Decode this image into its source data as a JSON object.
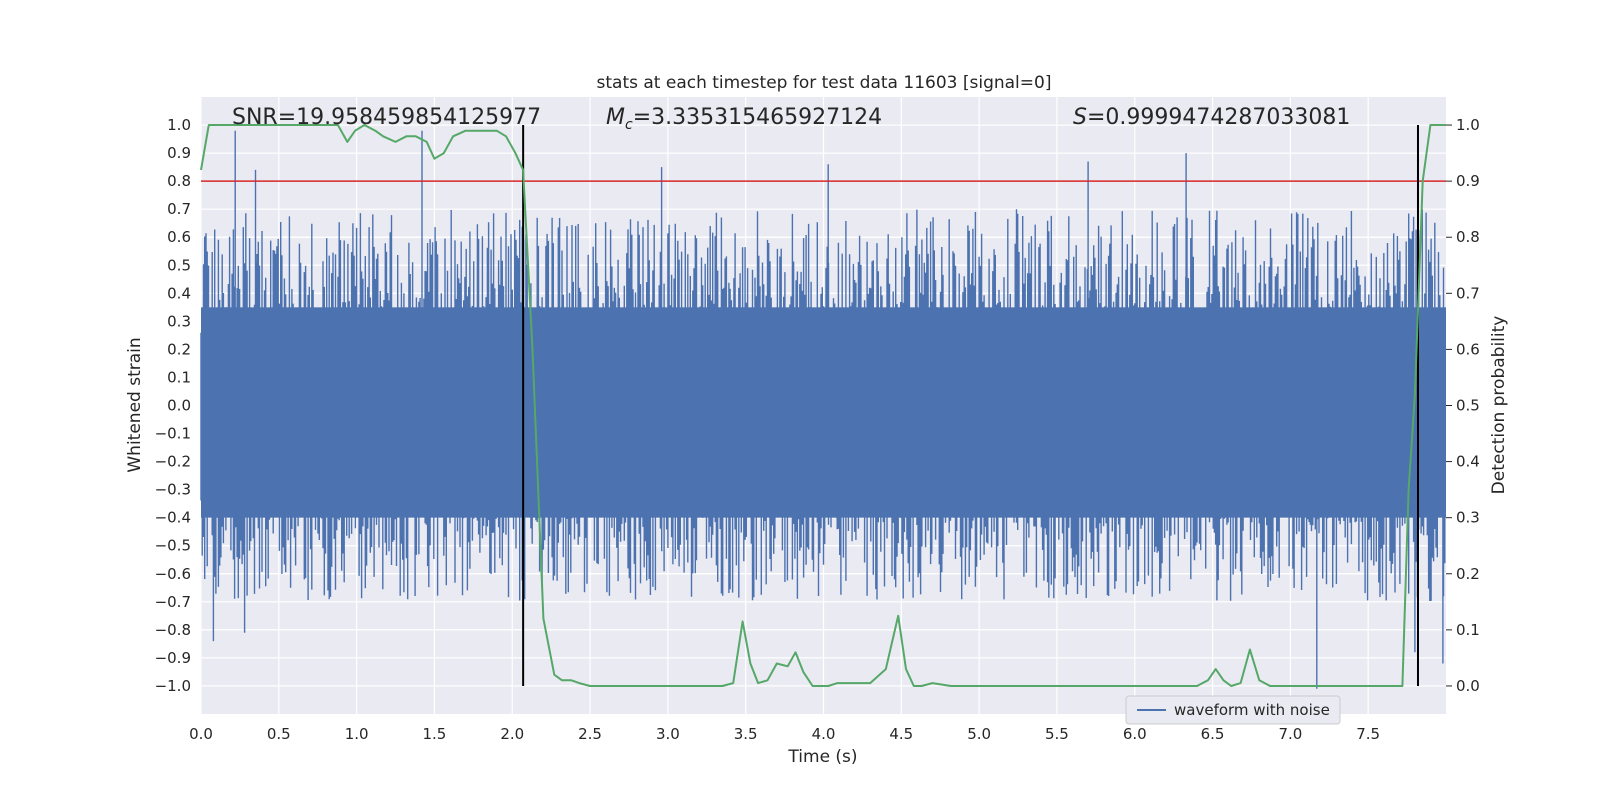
{
  "chart_data": {
    "type": "line",
    "title": "stats at each timestep for test data 11603 [signal=0]",
    "xlabel": "Time (s)",
    "ylabel_left": "Whitened strain",
    "ylabel_right": "Detection probability",
    "xlim": [
      0,
      8
    ],
    "ylim_left": [
      -1.1,
      1.1
    ],
    "ylim_right": [
      -0.05,
      1.05
    ],
    "x_ticks": [
      "0.0",
      "0.5",
      "1.0",
      "1.5",
      "2.0",
      "2.5",
      "3.0",
      "3.5",
      "4.0",
      "4.5",
      "5.0",
      "5.5",
      "6.0",
      "6.5",
      "7.0",
      "7.5"
    ],
    "x_tick_values": [
      0,
      0.5,
      1,
      1.5,
      2,
      2.5,
      3,
      3.5,
      4,
      4.5,
      5,
      5.5,
      6,
      6.5,
      7,
      7.5
    ],
    "y_left_ticks": [
      "1.0",
      "0.9",
      "0.8",
      "0.7",
      "0.6",
      "0.5",
      "0.4",
      "0.3",
      "0.2",
      "0.1",
      "0.0",
      "−0.1",
      "−0.2",
      "−0.3",
      "−0.4",
      "−0.5",
      "−0.6",
      "−0.7",
      "−0.8",
      "−0.9",
      "−1.0"
    ],
    "y_left_tick_values": [
      1.0,
      0.9,
      0.8,
      0.7,
      0.6,
      0.5,
      0.4,
      0.3,
      0.2,
      0.1,
      0.0,
      -0.1,
      -0.2,
      -0.3,
      -0.4,
      -0.5,
      -0.6,
      -0.7,
      -0.8,
      -0.9,
      -1.0
    ],
    "y_right_ticks": [
      "1.0",
      "0.9",
      "0.8",
      "0.7",
      "0.6",
      "0.5",
      "0.4",
      "0.3",
      "0.2",
      "0.1",
      "0.0"
    ],
    "y_right_tick_values": [
      1.0,
      0.9,
      0.8,
      0.7,
      0.6,
      0.5,
      0.4,
      0.3,
      0.2,
      0.1,
      0.0
    ],
    "annotations": {
      "snr_text": "SNR=19.958459854125977",
      "mc_label": "M",
      "mc_sub": "c",
      "mc_value": "=3.335315465927124",
      "s_label": "S",
      "s_value": "=0.9999474287033081"
    },
    "legend": {
      "label": "waveform with noise",
      "position": "lower-right"
    },
    "threshold_line": {
      "axis": "right",
      "value": 0.9,
      "color": "#d62728"
    },
    "vertical_lines": [
      {
        "x": 2.07,
        "color": "#000000"
      },
      {
        "x": 7.82,
        "color": "#000000"
      }
    ],
    "series": [
      {
        "name": "waveform with noise",
        "axis": "left",
        "kind": "noise-waveform",
        "color": "#4c72b0",
        "seed": 11603,
        "sample_count": 1000,
        "dense_band": [
          -0.4,
          0.35
        ],
        "typical_peak_max": 0.7,
        "typical_trough_min": -0.7,
        "spikes": [
          {
            "x": 0.22,
            "y": 0.98
          },
          {
            "x": 0.35,
            "y": 0.84
          },
          {
            "x": 1.42,
            "y": 0.98
          },
          {
            "x": 2.96,
            "y": 0.85
          },
          {
            "x": 4.03,
            "y": 0.86
          },
          {
            "x": 6.33,
            "y": 0.9
          },
          {
            "x": 5.7,
            "y": 0.87
          },
          {
            "x": 0.28,
            "y": -0.81
          },
          {
            "x": 0.08,
            "y": -0.84
          },
          {
            "x": 7.17,
            "y": -1.01
          },
          {
            "x": 2.07,
            "y": -0.87
          },
          {
            "x": 7.8,
            "y": -0.88
          },
          {
            "x": 7.98,
            "y": -0.92
          }
        ]
      },
      {
        "name": "detection probability",
        "axis": "right",
        "color": "#55a868",
        "x": [
          0.0,
          0.05,
          0.12,
          0.25,
          0.5,
          0.75,
          0.88,
          0.94,
          0.99,
          1.05,
          1.12,
          1.17,
          1.25,
          1.32,
          1.38,
          1.45,
          1.5,
          1.56,
          1.62,
          1.7,
          1.8,
          1.9,
          1.96,
          2.02,
          2.07,
          2.13,
          2.2,
          2.27,
          2.32,
          2.38,
          2.43,
          2.5,
          2.6,
          3.0,
          3.2,
          3.35,
          3.42,
          3.48,
          3.53,
          3.58,
          3.64,
          3.7,
          3.77,
          3.82,
          3.87,
          3.93,
          3.98,
          4.03,
          4.09,
          4.17,
          4.22,
          4.3,
          4.4,
          4.48,
          4.53,
          4.58,
          4.63,
          4.7,
          4.82,
          4.95,
          5.1,
          5.3,
          5.45,
          5.6,
          5.8,
          6.0,
          6.2,
          6.4,
          6.47,
          6.52,
          6.57,
          6.62,
          6.68,
          6.74,
          6.8,
          6.87,
          6.93,
          7.0,
          7.2,
          7.4,
          7.6,
          7.72,
          7.76,
          7.8,
          7.85,
          7.9,
          7.93,
          8.0
        ],
        "values": [
          0.92,
          1.0,
          1.0,
          1.0,
          1.0,
          1.0,
          1.0,
          0.97,
          0.99,
          1.0,
          0.99,
          0.98,
          0.97,
          0.98,
          0.98,
          0.97,
          0.94,
          0.95,
          0.98,
          0.99,
          0.99,
          0.99,
          0.98,
          0.95,
          0.92,
          0.6,
          0.12,
          0.02,
          0.01,
          0.01,
          0.005,
          0.0,
          0.0,
          0.0,
          0.0,
          0.0,
          0.005,
          0.115,
          0.04,
          0.005,
          0.01,
          0.04,
          0.035,
          0.06,
          0.025,
          0.0,
          0.0,
          0.0,
          0.005,
          0.005,
          0.005,
          0.005,
          0.03,
          0.125,
          0.03,
          0.0,
          0.0,
          0.005,
          0.0,
          0.0,
          0.0,
          0.0,
          0.0,
          0.0,
          0.0,
          0.0,
          0.0,
          0.0,
          0.01,
          0.03,
          0.01,
          0.0,
          0.005,
          0.065,
          0.01,
          0.0,
          0.0,
          0.0,
          0.0,
          0.0,
          0.0,
          0.0,
          0.35,
          0.52,
          0.9,
          1.0,
          1.0,
          1.0
        ]
      }
    ]
  }
}
